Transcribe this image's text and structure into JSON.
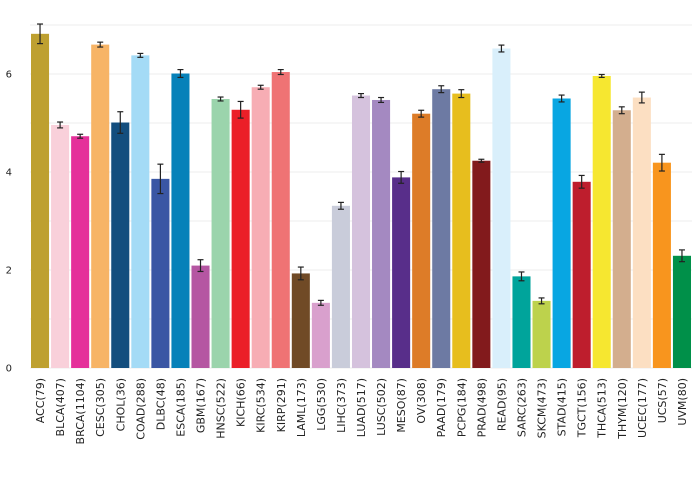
{
  "chart_data": {
    "type": "bar",
    "title": "",
    "xlabel": "",
    "ylabel": "",
    "ylim": [
      0,
      7
    ],
    "yticks": [
      0,
      2,
      4,
      6
    ],
    "grid": "horizontal",
    "legend": "none",
    "categories": [
      "ACC(79)",
      "BLCA(407)",
      "BRCA(1104)",
      "CESC(305)",
      "CHOL(36)",
      "COAD(288)",
      "DLBC(48)",
      "ESCA(185)",
      "GBM(167)",
      "HNSC(522)",
      "KICH(66)",
      "KIRC(534)",
      "KIRP(291)",
      "LAML(173)",
      "LGG(530)",
      "LIHC(373)",
      "LUAD(517)",
      "LUSC(502)",
      "MESO(87)",
      "OV(308)",
      "PAAD(179)",
      "PCPG(184)",
      "PRAD(498)",
      "READ(95)",
      "SARC(263)",
      "SKCM(473)",
      "STAD(415)",
      "TGCT(156)",
      "THCA(513)",
      "THYM(120)",
      "UCEC(177)",
      "UCS(57)",
      "UVM(80)"
    ],
    "values": [
      6.82,
      4.96,
      4.73,
      6.6,
      5.01,
      6.38,
      3.86,
      6.01,
      2.09,
      5.49,
      5.27,
      5.73,
      6.04,
      1.93,
      1.33,
      3.31,
      5.56,
      5.47,
      3.89,
      5.19,
      5.69,
      5.6,
      4.23,
      6.52,
      1.87,
      1.37,
      5.5,
      3.8,
      5.96,
      5.26,
      5.52,
      4.19,
      2.29
    ],
    "errors": [
      0.2,
      0.06,
      0.04,
      0.05,
      0.22,
      0.04,
      0.3,
      0.08,
      0.12,
      0.04,
      0.17,
      0.04,
      0.05,
      0.13,
      0.05,
      0.07,
      0.04,
      0.05,
      0.12,
      0.07,
      0.07,
      0.08,
      0.03,
      0.07,
      0.09,
      0.06,
      0.07,
      0.13,
      0.03,
      0.07,
      0.11,
      0.17,
      0.12
    ],
    "colors": [
      "#BEA030",
      "#F9D0DA",
      "#E5309A",
      "#F7B466",
      "#134E7E",
      "#A4DBF6",
      "#3A56A4",
      "#0681B9",
      "#B556A2",
      "#9BD4AC",
      "#EB1F28",
      "#F7ADB4",
      "#EF7374",
      "#704A26",
      "#D9A0CD",
      "#C9CCDA",
      "#D5C2DD",
      "#A489C1",
      "#582E8A",
      "#DD7C28",
      "#6D7AA3",
      "#E7BE1E",
      "#821A1C",
      "#D9EFFB",
      "#00A49B",
      "#BDD24C",
      "#08A6E2",
      "#BE1E2D",
      "#F6E730",
      "#D3AE8E",
      "#FCDFC2",
      "#F8951E",
      "#009049"
    ]
  }
}
